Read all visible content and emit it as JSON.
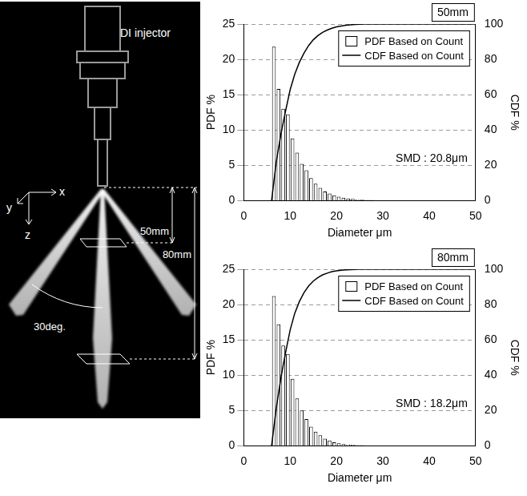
{
  "diagram": {
    "injector_label": "DI injector",
    "axis_labels": [
      "x",
      "y",
      "z"
    ],
    "distance_labels": [
      "50mm",
      "80mm"
    ],
    "angle_label": "30deg."
  },
  "chart_data": [
    {
      "type": "histogram",
      "title": "50mm",
      "annotation": "SMD : 20.8μm",
      "x_label": "Diameter μm",
      "y_label": "PDF %",
      "y2_label": "CDF %",
      "bins": [
        6,
        7,
        8,
        9,
        10,
        11,
        12,
        13,
        14,
        15,
        16,
        17,
        18,
        19,
        20,
        21,
        22,
        23,
        24,
        25,
        26,
        27,
        28,
        29,
        30
      ],
      "series": [
        {
          "name": "PDF Based on Count",
          "type": "bar",
          "color": "#ffffff",
          "values": [
            21.8,
            15.8,
            13.0,
            12.2,
            8.8,
            6.8,
            5.2,
            4.3,
            3.2,
            2.4,
            1.8,
            1.3,
            1.0,
            0.75,
            0.55,
            0.4,
            0.3,
            0.25,
            0.2,
            0.15,
            0.1,
            0.1,
            0.05,
            0.05
          ]
        },
        {
          "name": "CDF Based on Count",
          "type": "line",
          "color": "#000000",
          "axis": "y2",
          "x": [
            6,
            7,
            8,
            9,
            10,
            11,
            12,
            13,
            14,
            15,
            16,
            17,
            18,
            19,
            20,
            21,
            22,
            23,
            24,
            25,
            26,
            27,
            28,
            29,
            30,
            50
          ],
          "values": [
            0,
            21.8,
            37.6,
            50.6,
            62.8,
            71.6,
            78.4,
            83.6,
            87.9,
            91.1,
            93.5,
            95.3,
            96.6,
            97.6,
            98.4,
            98.9,
            99.3,
            99.6,
            99.8,
            99.9,
            100,
            100,
            100,
            100,
            100,
            100
          ]
        }
      ],
      "xlim": [
        0,
        50
      ],
      "xticks": [
        0,
        10,
        20,
        30,
        40,
        50
      ],
      "ylim": [
        0,
        25
      ],
      "yticks": [
        0,
        5,
        10,
        15,
        20,
        25
      ],
      "y2lim": [
        0,
        100
      ],
      "y2ticks": [
        0,
        20,
        40,
        60,
        80,
        100
      ],
      "grid": true,
      "legend": "upper right"
    },
    {
      "type": "histogram",
      "title": "80mm",
      "annotation": "SMD : 18.2μm",
      "x_label": "Diameter μm",
      "y_label": "PDF %",
      "y2_label": "CDF %",
      "bins": [
        6,
        7,
        8,
        9,
        10,
        11,
        12,
        13,
        14,
        15,
        16,
        17,
        18,
        19,
        20,
        21,
        22,
        23,
        24,
        25,
        26,
        27,
        28,
        29,
        30
      ],
      "series": [
        {
          "name": "PDF Based on Count",
          "type": "bar",
          "color": "#ffffff",
          "values": [
            21.2,
            17.2,
            14.2,
            13.0,
            9.5,
            6.7,
            5.0,
            3.8,
            2.7,
            2.0,
            1.5,
            1.0,
            0.75,
            0.5,
            0.35,
            0.25,
            0.2,
            0.15,
            0.1,
            0.1,
            0.05,
            0.05,
            0,
            0
          ]
        },
        {
          "name": "CDF Based on Count",
          "type": "line",
          "color": "#000000",
          "axis": "y2",
          "x": [
            6,
            7,
            8,
            9,
            10,
            11,
            12,
            13,
            14,
            15,
            16,
            17,
            18,
            19,
            20,
            21,
            22,
            23,
            24,
            25,
            26,
            27,
            28,
            29,
            30,
            50
          ],
          "values": [
            0,
            21.2,
            38.4,
            52.6,
            65.6,
            75.1,
            81.8,
            86.8,
            90.6,
            93.3,
            95.3,
            96.8,
            97.8,
            98.6,
            99.1,
            99.4,
            99.7,
            99.8,
            99.9,
            100,
            100,
            100,
            100,
            100,
            100,
            100
          ]
        }
      ],
      "xlim": [
        0,
        50
      ],
      "xticks": [
        0,
        10,
        20,
        30,
        40,
        50
      ],
      "ylim": [
        0,
        25
      ],
      "yticks": [
        0,
        5,
        10,
        15,
        20,
        25
      ],
      "y2lim": [
        0,
        100
      ],
      "y2ticks": [
        0,
        20,
        40,
        60,
        80,
        100
      ],
      "grid": true,
      "legend": "upper right"
    }
  ]
}
